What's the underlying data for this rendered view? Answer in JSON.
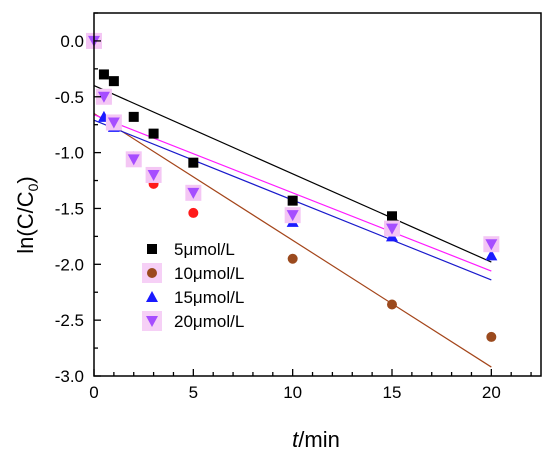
{
  "chart_data": {
    "type": "scatter",
    "xlabel_italic": "t",
    "xlabel_unit": "/min",
    "ylabel_main": "ln(C/C",
    "ylabel_sub": "0",
    "ylabel_close": ")",
    "xlim": [
      0,
      22.5
    ],
    "ylim": [
      -3.0,
      0.25
    ],
    "xticks": [
      0,
      5,
      10,
      15,
      20
    ],
    "xtick_labels": [
      "0",
      "5",
      "10",
      "15",
      "20"
    ],
    "yticks": [
      0.0,
      -0.5,
      -1.0,
      -1.5,
      -2.0,
      -2.5,
      -3.0
    ],
    "ytick_labels": [
      "0.0",
      "-0.5",
      "-1.0",
      "-1.5",
      "-2.0",
      "-2.5",
      "-3.0"
    ],
    "legend_position": "lower-left",
    "series": [
      {
        "name": "5μmol/L",
        "marker": "square",
        "color": "#000000",
        "fit_color": "#000000",
        "x": [
          0,
          0.5,
          1,
          2,
          3,
          5,
          10,
          15,
          20
        ],
        "y": [
          0.0,
          -0.3,
          -0.36,
          -0.68,
          -0.83,
          -1.09,
          -1.43,
          -1.57,
          -1.82
        ],
        "fit": {
          "x": [
            0,
            20
          ],
          "y": [
            -0.4,
            -1.98
          ]
        }
      },
      {
        "name": "10μmol/L",
        "marker": "circle",
        "color": "#ff1a1a",
        "color_late": "#9b4a1e",
        "late_from_index": 6,
        "fit_color": "#a4451a",
        "x": [
          0,
          0.5,
          1,
          2,
          3,
          5,
          10,
          15,
          20
        ],
        "y": [
          0.0,
          -0.5,
          -0.74,
          -1.08,
          -1.28,
          -1.54,
          -1.95,
          -2.36,
          -2.65
        ],
        "fit": {
          "x": [
            0,
            20
          ],
          "y": [
            -0.65,
            -2.92
          ]
        }
      },
      {
        "name": "15μmol/L",
        "marker": "triangle-up",
        "color": "#1a1aff",
        "fit_color": "#1a1acc",
        "x": [
          0,
          0.5,
          1,
          2,
          3,
          5,
          10,
          15,
          20
        ],
        "y": [
          0.0,
          -0.68,
          -0.77,
          -1.04,
          -1.22,
          -1.38,
          -1.62,
          -1.75,
          -1.92
        ],
        "fit": {
          "x": [
            0,
            20
          ],
          "y": [
            -0.71,
            -2.14
          ]
        }
      },
      {
        "name": "20μmol/L",
        "marker": "triangle-down",
        "color": "#a64dff",
        "fit_color": "#ff1aff",
        "x": [
          0,
          0.5,
          1,
          2,
          3,
          5,
          10,
          15,
          20
        ],
        "y": [
          0.0,
          -0.5,
          -0.73,
          -1.06,
          -1.2,
          -1.36,
          -1.56,
          -1.68,
          -1.82
        ],
        "fit": {
          "x": [
            0,
            20
          ],
          "y": [
            -0.66,
            -2.06
          ]
        }
      }
    ]
  }
}
